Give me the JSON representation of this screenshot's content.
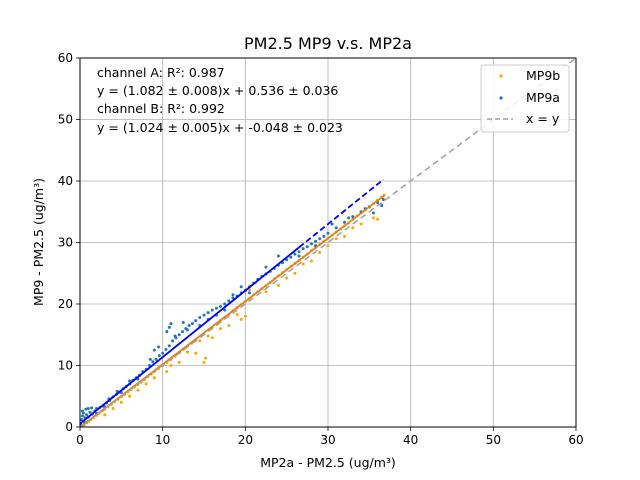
{
  "chart_data": {
    "type": "scatter",
    "title": "PM2.5 MP9 v.s. MP2a",
    "xlabel": "MP2a - PM2.5 (ug/m³)",
    "ylabel": "MP9 - PM2.5 (ug/m³)",
    "xlim": [
      0,
      60
    ],
    "ylim": [
      0,
      60
    ],
    "xticks": [
      "0",
      "10",
      "20",
      "30",
      "40",
      "50",
      "60"
    ],
    "yticks": [
      "0",
      "10",
      "20",
      "30",
      "40",
      "50",
      "60"
    ],
    "grid": true,
    "legend_position": "top-right",
    "annotations": [
      "channel A: R²: 0.987",
      "y = (1.082 ± 0.008)x + 0.536 ± 0.036",
      "channel B: R²: 0.992",
      "y = (1.024 ± 0.005)x + -0.048 ± 0.023"
    ],
    "series": [
      {
        "name": "MP9b",
        "color": "#ffa500",
        "marker": "dot",
        "fit": {
          "slope": 1.024,
          "intercept": -0.048,
          "color": "#e08020"
        },
        "points": [
          [
            0.2,
            0.1
          ],
          [
            0.5,
            0.3
          ],
          [
            0.8,
            0.7
          ],
          [
            1.0,
            0.9
          ],
          [
            1.3,
            1.2
          ],
          [
            1.6,
            1.5
          ],
          [
            2.0,
            1.9
          ],
          [
            2.3,
            2.2
          ],
          [
            2.7,
            2.6
          ],
          [
            3.0,
            2.9
          ],
          [
            3.4,
            3.3
          ],
          [
            3.8,
            3.7
          ],
          [
            4.2,
            4.1
          ],
          [
            4.6,
            4.5
          ],
          [
            5.0,
            4.9
          ],
          [
            5.4,
            5.3
          ],
          [
            5.8,
            5.7
          ],
          [
            6.2,
            6.1
          ],
          [
            6.6,
            6.5
          ],
          [
            7.0,
            6.9
          ],
          [
            7.4,
            7.3
          ],
          [
            7.8,
            7.7
          ],
          [
            8.2,
            8.2
          ],
          [
            8.6,
            8.6
          ],
          [
            9.0,
            9.0
          ],
          [
            9.5,
            9.5
          ],
          [
            10.0,
            10.0
          ],
          [
            10.5,
            10.5
          ],
          [
            11.0,
            11.0
          ],
          [
            11.5,
            11.5
          ],
          [
            12.0,
            12.1
          ],
          [
            12.5,
            12.6
          ],
          [
            13.0,
            13.1
          ],
          [
            13.5,
            13.6
          ],
          [
            14.0,
            14.2
          ],
          [
            14.5,
            14.0
          ],
          [
            15.0,
            10.5
          ],
          [
            15.2,
            11.2
          ],
          [
            16.0,
            16.2
          ],
          [
            16.5,
            16.7
          ],
          [
            17.0,
            17.3
          ],
          [
            17.5,
            17.8
          ],
          [
            18.0,
            18.3
          ],
          [
            18.5,
            18.9
          ],
          [
            19.0,
            19.4
          ],
          [
            19.5,
            19.9
          ],
          [
            20.0,
            20.4
          ],
          [
            20.5,
            20.9
          ],
          [
            21.0,
            21.5
          ],
          [
            21.5,
            22.0
          ],
          [
            22.0,
            22.5
          ],
          [
            22.5,
            23.0
          ],
          [
            23.0,
            23.5
          ],
          [
            23.5,
            24.1
          ],
          [
            24.0,
            24.6
          ],
          [
            24.5,
            25.1
          ],
          [
            25.0,
            25.6
          ],
          [
            25.5,
            26.1
          ],
          [
            26.0,
            26.6
          ],
          [
            26.5,
            27.1
          ],
          [
            27.0,
            27.6
          ],
          [
            27.5,
            28.1
          ],
          [
            28.0,
            28.7
          ],
          [
            28.5,
            29.2
          ],
          [
            29.0,
            29.7
          ],
          [
            29.5,
            30.2
          ],
          [
            30.0,
            30.7
          ],
          [
            30.5,
            31.2
          ],
          [
            31.0,
            31.7
          ],
          [
            31.5,
            32.2
          ],
          [
            32.0,
            32.7
          ],
          [
            32.5,
            33.2
          ],
          [
            33.0,
            33.8
          ],
          [
            33.5,
            34.3
          ],
          [
            34.0,
            34.8
          ],
          [
            34.5,
            35.3
          ],
          [
            35.0,
            35.8
          ],
          [
            35.5,
            36.3
          ],
          [
            36.0,
            36.9
          ],
          [
            36.5,
            37.4
          ],
          [
            36.8,
            37.7
          ],
          [
            20.5,
            22.3
          ],
          [
            21.2,
            23.4
          ],
          [
            22.0,
            24.5
          ],
          [
            19.5,
            17.5
          ],
          [
            20.0,
            18.0
          ],
          [
            6.0,
            5.0
          ],
          [
            8.0,
            7.0
          ],
          [
            10.5,
            9.0
          ],
          [
            12.0,
            10.5
          ],
          [
            14.0,
            12.0
          ],
          [
            16.0,
            14.5
          ],
          [
            18.0,
            16.5
          ],
          [
            24.0,
            23.0
          ],
          [
            26.0,
            25.0
          ],
          [
            28.0,
            27.0
          ],
          [
            30.0,
            29.5
          ],
          [
            32.0,
            31.0
          ],
          [
            34.0,
            33.0
          ],
          [
            35.5,
            34.0
          ],
          [
            36.0,
            33.8
          ],
          [
            3.0,
            2.0
          ],
          [
            4.0,
            3.0
          ],
          [
            5.0,
            4.0
          ],
          [
            7.0,
            6.0
          ],
          [
            9.0,
            8.0
          ],
          [
            11.0,
            10.0
          ],
          [
            13.0,
            12.2
          ],
          [
            15.5,
            14.8
          ],
          [
            17.0,
            16.0
          ],
          [
            19.0,
            18.3
          ],
          [
            22.5,
            22.0
          ],
          [
            25.0,
            24.2
          ],
          [
            27.0,
            26.5
          ],
          [
            29.0,
            28.4
          ],
          [
            31.0,
            30.6
          ],
          [
            33.0,
            32.4
          ]
        ]
      },
      {
        "name": "MP9a",
        "color": "#1f77b4",
        "marker": "dot",
        "fit": {
          "slope": 1.082,
          "intercept": 0.536,
          "color": "#0000ff"
        },
        "points": [
          [
            0.1,
            0.5
          ],
          [
            0.2,
            1.2
          ],
          [
            0.3,
            1.8
          ],
          [
            0.4,
            2.3
          ],
          [
            0.5,
            0.8
          ],
          [
            0.6,
            1.5
          ],
          [
            0.8,
            2.0
          ],
          [
            1.0,
            1.6
          ],
          [
            1.2,
            2.4
          ],
          [
            1.5,
            2.1
          ],
          [
            1.8,
            2.6
          ],
          [
            2.0,
            3.0
          ],
          [
            2.4,
            3.2
          ],
          [
            2.8,
            3.4
          ],
          [
            3.2,
            3.9
          ],
          [
            3.6,
            4.3
          ],
          [
            4.0,
            4.9
          ],
          [
            4.4,
            5.3
          ],
          [
            4.8,
            5.7
          ],
          [
            5.2,
            6.2
          ],
          [
            5.6,
            6.6
          ],
          [
            6.0,
            7.0
          ],
          [
            6.4,
            7.6
          ],
          [
            6.8,
            8.0
          ],
          [
            7.2,
            8.4
          ],
          [
            7.6,
            9.0
          ],
          [
            8.0,
            9.4
          ],
          [
            8.4,
            10.0
          ],
          [
            8.8,
            10.6
          ],
          [
            9.2,
            11.0
          ],
          [
            9.6,
            11.6
          ],
          [
            10.0,
            12.0
          ],
          [
            10.4,
            12.6
          ],
          [
            10.8,
            13.2
          ],
          [
            11.2,
            14.0
          ],
          [
            11.6,
            14.5
          ],
          [
            12.0,
            15.0
          ],
          [
            12.4,
            15.5
          ],
          [
            12.8,
            16.0
          ],
          [
            13.2,
            16.5
          ],
          [
            13.6,
            16.8
          ],
          [
            14.0,
            17.3
          ],
          [
            14.5,
            17.8
          ],
          [
            15.0,
            18.2
          ],
          [
            15.5,
            18.6
          ],
          [
            16.0,
            19.0
          ],
          [
            16.5,
            19.3
          ],
          [
            17.0,
            19.6
          ],
          [
            17.5,
            20.0
          ],
          [
            18.0,
            20.5
          ],
          [
            18.5,
            21.0
          ],
          [
            19.0,
            21.3
          ],
          [
            19.5,
            21.8
          ],
          [
            20.0,
            22.2
          ],
          [
            20.5,
            22.8
          ],
          [
            21.0,
            23.4
          ],
          [
            21.5,
            24.0
          ],
          [
            22.0,
            24.5
          ],
          [
            22.5,
            24.9
          ],
          [
            23.0,
            25.3
          ],
          [
            23.5,
            25.8
          ],
          [
            24.0,
            26.3
          ],
          [
            24.5,
            26.7
          ],
          [
            25.0,
            27.2
          ],
          [
            25.5,
            27.6
          ],
          [
            26.0,
            28.1
          ],
          [
            26.5,
            28.5
          ],
          [
            27.0,
            29.0
          ],
          [
            27.5,
            29.3
          ],
          [
            28.0,
            29.8
          ],
          [
            28.5,
            30.2
          ],
          [
            29.0,
            30.6
          ],
          [
            29.5,
            31.0
          ],
          [
            30.0,
            31.5
          ],
          [
            31.0,
            32.4
          ],
          [
            32.0,
            33.3
          ],
          [
            33.0,
            34.2
          ],
          [
            34.0,
            35.0
          ],
          [
            35.0,
            35.8
          ],
          [
            36.0,
            36.5
          ],
          [
            36.7,
            37.0
          ],
          [
            10.5,
            15.5
          ],
          [
            10.8,
            16.2
          ],
          [
            11.0,
            16.8
          ],
          [
            11.5,
            14.8
          ],
          [
            12.5,
            17.0
          ],
          [
            13.0,
            15.8
          ],
          [
            9.5,
            13.0
          ],
          [
            9.0,
            12.5
          ],
          [
            8.5,
            11.0
          ],
          [
            15.5,
            17.5
          ],
          [
            16.5,
            18.2
          ],
          [
            17.5,
            19.0
          ],
          [
            18.5,
            21.5
          ],
          [
            19.5,
            22.8
          ],
          [
            22.5,
            26.0
          ],
          [
            24.0,
            27.8
          ],
          [
            30.5,
            33.0
          ],
          [
            32.5,
            34.0
          ],
          [
            34.5,
            35.5
          ],
          [
            35.5,
            34.8
          ],
          [
            36.5,
            36.0
          ],
          [
            2.0,
            2.2
          ],
          [
            3.0,
            3.3
          ],
          [
            5.0,
            5.6
          ],
          [
            7.0,
            7.8
          ],
          [
            1.0,
            3.0
          ],
          [
            0.3,
            2.6
          ],
          [
            0.7,
            2.9
          ],
          [
            1.4,
            3.1
          ],
          [
            6.0,
            7.5
          ],
          [
            4.5,
            5.8
          ],
          [
            3.5,
            4.6
          ],
          [
            14.5,
            16.5
          ],
          [
            20.5,
            21.8
          ],
          [
            26.5,
            27.8
          ],
          [
            28.5,
            29.5
          ]
        ]
      },
      {
        "name": "x = y",
        "color": "#a0a0a0",
        "line_style": "dashed",
        "x": [
          0,
          60
        ],
        "y": [
          0,
          60
        ]
      }
    ]
  }
}
